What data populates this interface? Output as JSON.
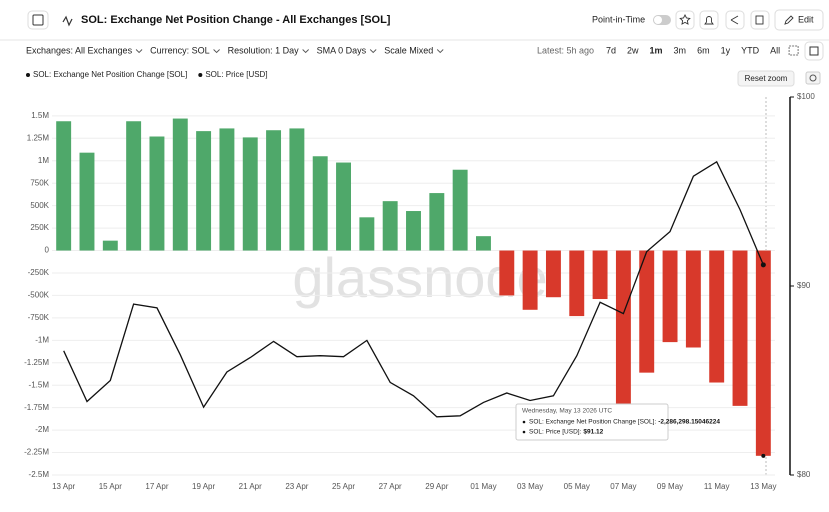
{
  "header": {
    "title": "SOL: Exchange Net Position Change - All Exchanges [SOL]",
    "point_in_time": "Point-in-Time",
    "edit": "Edit"
  },
  "toolbar": {
    "filters": [
      "Exchanges: All Exchanges",
      "Currency: SOL",
      "Resolution: 1 Day",
      "SMA 0 Days",
      "Scale Mixed"
    ],
    "latest": "Latest: 5h ago",
    "ranges": [
      "7d",
      "2w",
      "1m",
      "3m",
      "6m",
      "1y",
      "YTD",
      "All"
    ],
    "selected_range": "1m",
    "reset_zoom": "Reset zoom"
  },
  "watermark": "glassnode",
  "chart_data": {
    "type": "bar",
    "categories": [
      "13 Apr",
      null,
      "15 Apr",
      null,
      "17 Apr",
      null,
      "19 Apr",
      null,
      "21 Apr",
      null,
      "23 Apr",
      null,
      "25 Apr",
      null,
      "27 Apr",
      null,
      "29 Apr",
      null,
      "01 May",
      null,
      "03 May",
      null,
      "05 May",
      null,
      "07 May",
      null,
      "09 May",
      null,
      "11 May",
      null,
      "13 May"
    ],
    "series": [
      {
        "name": "SOL: Exchange Net Position Change [SOL]",
        "type": "bar",
        "positive_color": "#4fa86a",
        "negative_color": "#d8392b",
        "values": [
          1440000,
          1090000,
          110000,
          1440000,
          1270000,
          1470000,
          1330000,
          1360000,
          1260000,
          1340000,
          1360000,
          1050000,
          980000,
          370000,
          550000,
          440000,
          640000,
          900000,
          160000,
          -500000,
          -660000,
          -520000,
          -730000,
          -540000,
          -1730000,
          -1360000,
          -1020000,
          -1080000,
          -1470000,
          -1730000,
          -2286298.15046224
        ]
      },
      {
        "name": "SOL: Price [USD]",
        "type": "line",
        "color": "#111111",
        "axis": "y2",
        "values": [
          86.57,
          83.89,
          85.0,
          89.04,
          88.84,
          86.36,
          83.59,
          85.45,
          86.21,
          87.07,
          86.26,
          86.31,
          86.26,
          87.12,
          84.9,
          84.19,
          83.08,
          83.13,
          83.84,
          84.34,
          83.94,
          84.19,
          86.31,
          89.14,
          88.54,
          91.82,
          92.88,
          95.81,
          96.57,
          94.04,
          91.12
        ]
      }
    ],
    "ylim": [
      -2500000,
      1710000
    ],
    "yticks": [
      {
        "value": 1500000,
        "label": "1.5M"
      },
      {
        "value": 1250000,
        "label": "1.25M"
      },
      {
        "value": 1000000,
        "label": "1M"
      },
      {
        "value": 750000,
        "label": "750K"
      },
      {
        "value": 500000,
        "label": "500K"
      },
      {
        "value": 250000,
        "label": "250K"
      },
      0,
      {
        "value": -250000,
        "label": "-250K"
      },
      {
        "value": -500000,
        "label": "-500K"
      },
      {
        "value": -750000,
        "label": "-750K"
      },
      {
        "value": -1000000,
        "label": "-1M"
      },
      {
        "value": -1250000,
        "label": "-1.25M"
      },
      {
        "value": -1500000,
        "label": "-1.5M"
      },
      {
        "value": -1750000,
        "label": "-1.75M"
      },
      {
        "value": -2000000,
        "label": "-2M"
      },
      {
        "value": -2250000,
        "label": "-2.25M"
      },
      {
        "value": -2500000,
        "label": "-2.5M"
      }
    ],
    "y2lim": [
      80,
      100
    ],
    "y2ticks": [
      {
        "value": 100,
        "label": "$100"
      },
      {
        "value": 90,
        "label": "$90"
      },
      {
        "value": 80,
        "label": "$80"
      }
    ],
    "tooltip": {
      "title": "Wednesday, May 13 2026 UTC",
      "rows": [
        {
          "label": "SOL: Exchange Net Position Change [SOL]:",
          "value": "-2,286,298.15046224"
        },
        {
          "label": "SOL: Price [USD]:",
          "value": "$91.12"
        }
      ]
    }
  }
}
